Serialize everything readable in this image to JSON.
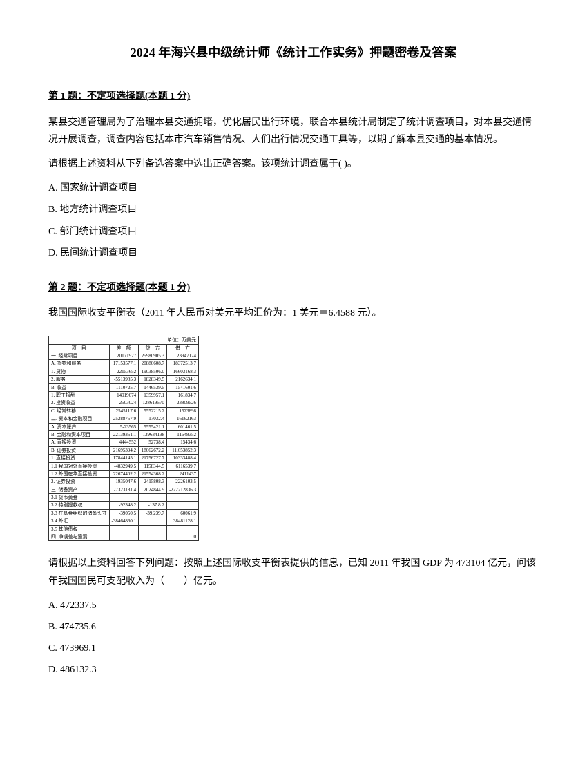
{
  "title": "2024 年海兴县中级统计师《统计工作实务》押题密卷及答案",
  "q1": {
    "header": "第 1 题：不定项选择题(本题 1 分)",
    "text1": "某县交通管理局为了治理本县交通拥堵，优化居民出行环境，联合本县统计局制定了统计调查项目，对本县交通情况开展调查，调查内容包括本市汽车销售情况、人们出行情况交通工具等，以期了解本县交通的基本情况。",
    "text2": "请根据上述资料从下列备选答案中选出正确答案。该项统计调查属于( )。",
    "optA": "A. 国家统计调查项目",
    "optB": "B. 地方统计调查项目",
    "optC": "C. 部门统计调查项目",
    "optD": "D. 民间统计调查项目"
  },
  "q2": {
    "header": "第 2 题：不定项选择题(本题 1 分)",
    "text1": "我国国际收支平衡表（2011 年人民币对美元平均汇价为：1 美元＝6.4588 元）。",
    "text2": "请根据以上资料回答下列问题：按照上述国际收支平衡表提供的信息，已知 2011 年我国 GDP 为 473104 亿元，问该年我国国民可支配收入为（　　）亿元。",
    "optA": "A. 472337.5",
    "optB": "B. 474735.6",
    "optC": "C. 473969.1",
    "optD": "D. 486132.3"
  },
  "table": {
    "unit": "单位：万美元",
    "headers": [
      "项　目",
      "差　额",
      "贷　方",
      "借　方"
    ],
    "rows": [
      [
        "一. 经常项目",
        "20171927",
        "25980905.3",
        "23947124"
      ],
      [
        "A. 货物和服务",
        "17153577.1",
        "20880608.7",
        "18372513.7"
      ],
      [
        "1. 货物",
        "22153652",
        "19038506.0",
        "16603168.3"
      ],
      [
        "2. 服务",
        "-5513985.3",
        "1828349.5",
        "2162634.1"
      ],
      [
        "B. 收益",
        "-1110725.7",
        "1446539.5",
        "1541601.6"
      ],
      [
        "1. 职工报酬",
        "14919074",
        "1359957.1",
        "161834.7"
      ],
      [
        "2. 投资收益",
        "-2503024",
        "-128619570",
        "23809526"
      ],
      [
        "C. 经常转移",
        "2545117.6",
        "5552215.2",
        "1523898"
      ],
      [
        "二. 资本和金融项目",
        "-25288757.9",
        "17032.4",
        "16162163"
      ],
      [
        "A. 资本账户",
        "5-23565",
        "5555421.1",
        "601461.5"
      ],
      [
        "B. 金融和资本项目",
        "22139351.1",
        "139634198",
        "11648352"
      ],
      [
        "A. 直接投资",
        "4444552",
        "52738.4",
        "15434.6"
      ],
      [
        "B. 证券投资",
        "21695394.2",
        "18062672.2",
        "11.653852.3"
      ],
      [
        "1. 直接投资",
        "17844145.1",
        "21756727.7",
        "10333488.4"
      ],
      [
        "1.1 我国对外直接投资",
        "-4832949.5",
        "1158344.5",
        "6116539.7"
      ],
      [
        "1.2 外国在华直接投资",
        "22674402.2",
        "21554368.2",
        "2411437"
      ],
      [
        "2. 证券投资",
        "1935047.6",
        "2415808.3",
        "2226103.5"
      ],
      [
        "三. 储备资产",
        "-7323181.4",
        "2024844.9",
        "-222212836.3"
      ],
      [
        "3.1 货币黄金",
        "",
        "",
        ""
      ],
      [
        "3.2 特别提款权",
        "-92348.2",
        "-137.8 2",
        ""
      ],
      [
        "3.3 在基金组织的储备头寸",
        "-39050.5",
        "-39.239.7",
        "60061.9"
      ],
      [
        "3.4 外汇",
        "-38464860.1",
        "",
        "38481128.1"
      ],
      [
        "3.5 其他债权",
        "",
        "",
        ""
      ],
      [
        "四. 净误差与遗漏",
        "",
        "",
        "0"
      ]
    ]
  }
}
